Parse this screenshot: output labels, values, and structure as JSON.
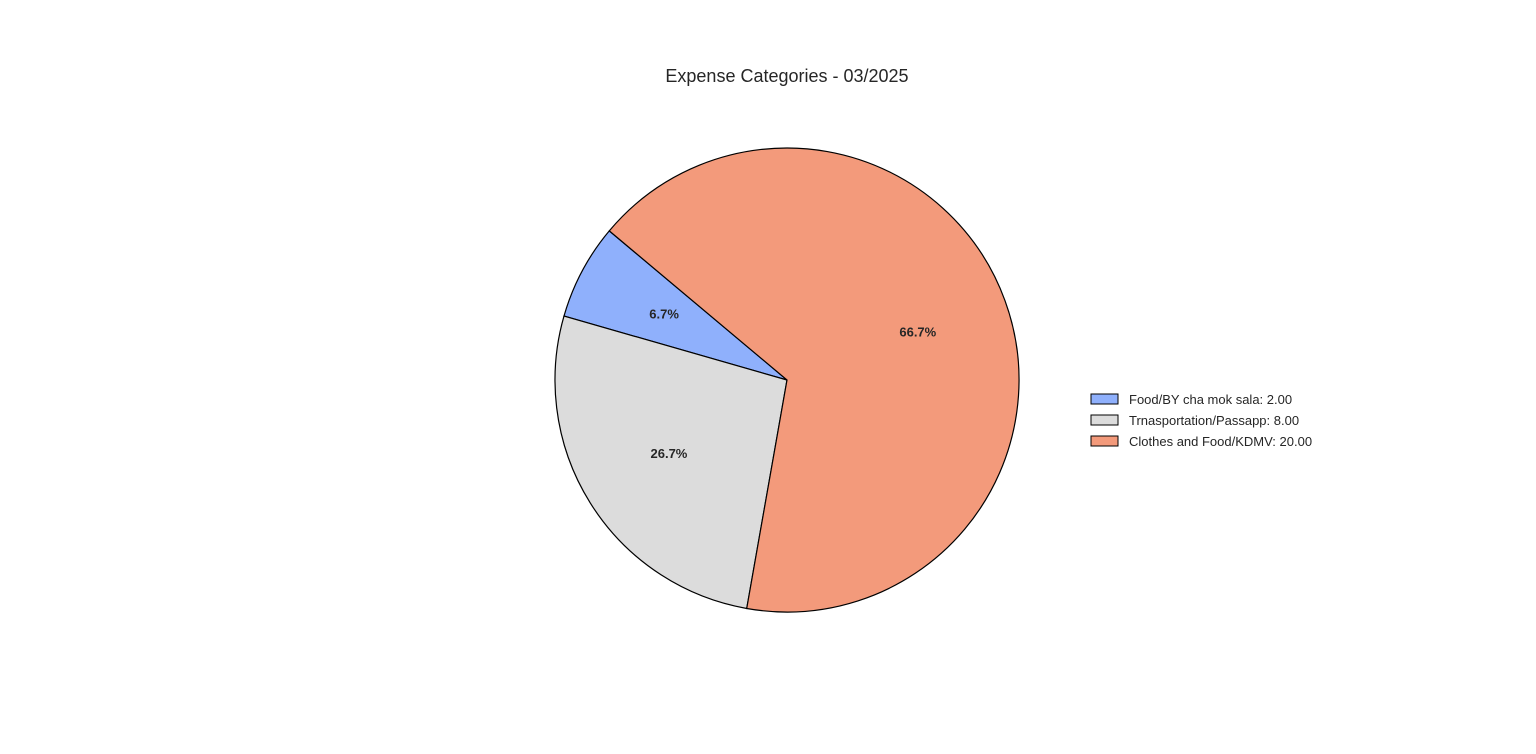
{
  "chart_data": {
    "type": "pie",
    "title": "Expense Categories - 03/2025",
    "slices": [
      {
        "label": "Food/BY cha mok sala",
        "value": 2.0,
        "pct_label": "6.7%",
        "legend": "Food/BY cha mok sala: 2.00",
        "color": "#8fb0fc"
      },
      {
        "label": "Trnasportation/Passapp",
        "value": 8.0,
        "pct_label": "26.7%",
        "legend": "Trnasportation/Passapp: 8.00",
        "color": "#dcdcdc"
      },
      {
        "label": "Clothes and Food/KDMV",
        "value": 20.0,
        "pct_label": "66.7%",
        "legend": "Clothes and Food/KDMV: 20.00",
        "color": "#f39a7b"
      }
    ],
    "legend_position": "right",
    "stroke_color": "#000000"
  }
}
